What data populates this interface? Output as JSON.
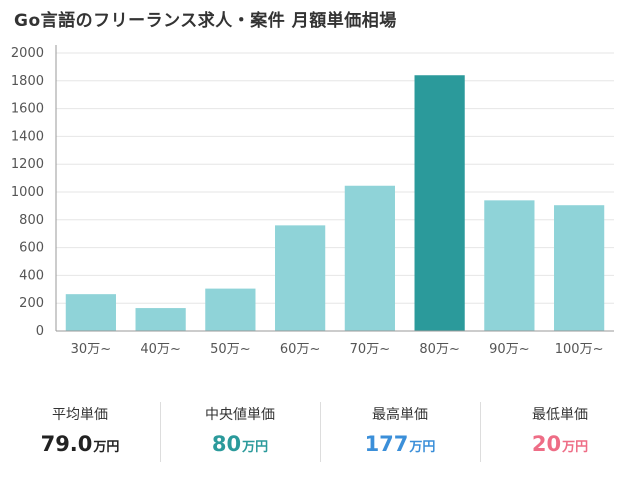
{
  "title": "Go言語のフリーランス求人・案件 月額単価相場",
  "chart_data": {
    "type": "bar",
    "categories": [
      "30万~",
      "40万~",
      "50万~",
      "60万~",
      "70万~",
      "80万~",
      "90万~",
      "100万~"
    ],
    "values": [
      265,
      165,
      305,
      760,
      1045,
      1840,
      940,
      905
    ],
    "highlight_index": 5,
    "ylim": [
      0,
      2000
    ],
    "yticks": [
      0,
      200,
      400,
      600,
      800,
      1000,
      1200,
      1400,
      1600,
      1800,
      2000
    ],
    "grid": true,
    "colors": {
      "bar": "#8fd3d8",
      "highlight": "#2b9a9b",
      "grid": "#e6e6e6",
      "axis": "#999999"
    }
  },
  "stats": [
    {
      "label": "平均単価",
      "value": "79.0",
      "unit": "万円",
      "color": "#222222"
    },
    {
      "label": "中央値単価",
      "value": "80",
      "unit": "万円",
      "color": "#2b9a9b"
    },
    {
      "label": "最高単価",
      "value": "177",
      "unit": "万円",
      "color": "#3b8fd9"
    },
    {
      "label": "最低単価",
      "value": "20",
      "unit": "万円",
      "color": "#ee6d86"
    }
  ]
}
